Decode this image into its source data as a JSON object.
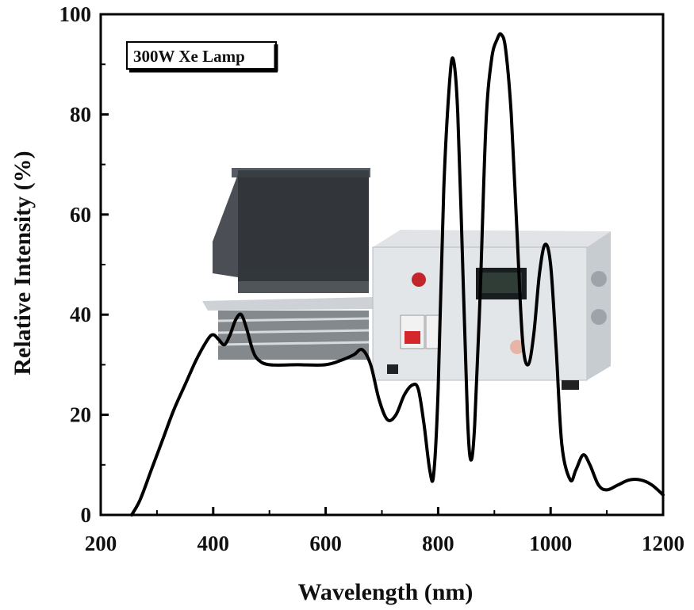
{
  "chart_data": {
    "type": "line",
    "title": "",
    "xlabel": "Wavelength (nm)",
    "ylabel": "Relative Intensity (%)",
    "xlim": [
      200,
      1200
    ],
    "ylim": [
      0,
      100
    ],
    "xticks": [
      200,
      400,
      600,
      800,
      1000,
      1200
    ],
    "yticks": [
      0,
      20,
      40,
      60,
      80,
      100
    ],
    "grid": false,
    "legend": {
      "label": "300W Xe Lamp",
      "placement": "top-left"
    },
    "series": [
      {
        "name": "300W Xe Lamp",
        "color": "#000000",
        "x": [
          255,
          270,
          290,
          310,
          330,
          350,
          370,
          390,
          400,
          410,
          420,
          430,
          440,
          450,
          460,
          470,
          480,
          500,
          550,
          600,
          630,
          650,
          665,
          680,
          695,
          710,
          725,
          740,
          755,
          765,
          775,
          785,
          792,
          800,
          810,
          820,
          827,
          835,
          845,
          852,
          858,
          865,
          875,
          885,
          895,
          905,
          912,
          920,
          930,
          940,
          950,
          960,
          970,
          980,
          990,
          1000,
          1010,
          1020,
          1035,
          1045,
          1058,
          1070,
          1085,
          1100,
          1120,
          1140,
          1160,
          1180,
          1200
        ],
        "y": [
          0,
          3,
          9,
          15,
          21,
          26,
          31,
          35,
          36,
          35,
          34,
          36,
          39,
          40,
          37,
          33,
          31,
          30,
          30,
          30,
          31,
          32,
          33,
          30,
          23,
          19,
          20,
          24,
          26,
          25,
          18,
          9,
          8,
          25,
          65,
          86,
          91,
          80,
          45,
          20,
          11,
          18,
          45,
          78,
          91,
          95,
          96,
          93,
          80,
          57,
          35,
          30,
          36,
          48,
          54,
          50,
          33,
          14,
          7,
          9,
          12,
          10,
          6,
          5,
          6,
          7,
          7,
          6,
          4
        ]
      }
    ]
  }
}
